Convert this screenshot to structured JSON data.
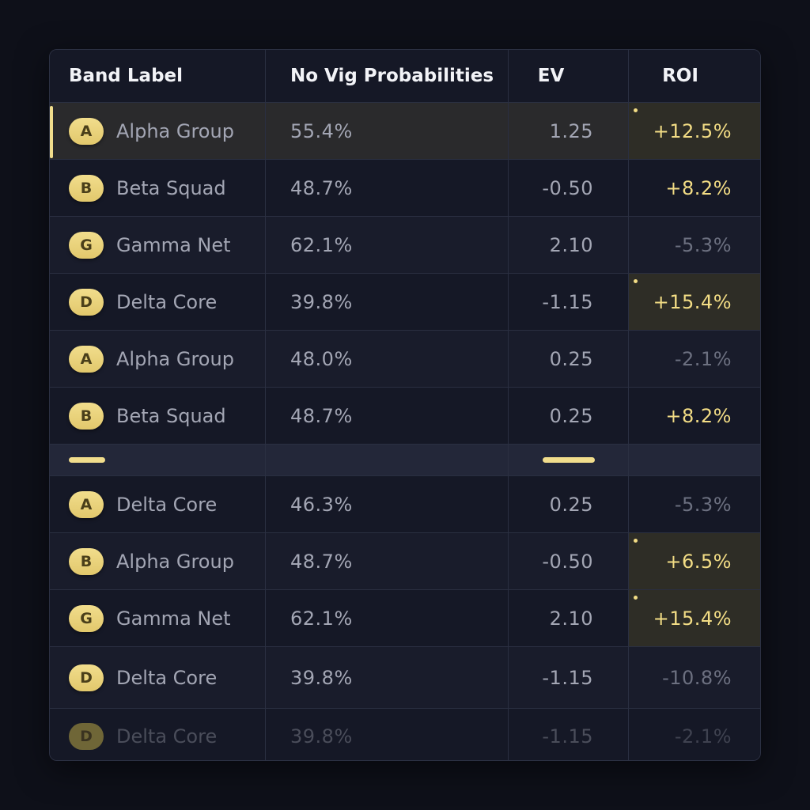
{
  "table": {
    "headers": {
      "band_label": "Band Label",
      "no_vig": "No Vig Probabilities",
      "ev": "EV",
      "roi": "ROI"
    },
    "rows_top": [
      {
        "badge": "A",
        "name": "Alpha Group",
        "prob": "55.4%",
        "ev": "1.25",
        "roi": "+12.5%"
      },
      {
        "badge": "B",
        "name": "Beta Squad",
        "prob": "48.7%",
        "ev": "-0.50",
        "roi": "+8.2%"
      },
      {
        "badge": "G",
        "name": "Gamma Net",
        "prob": "62.1%",
        "ev": "2.10",
        "roi": "-5.3%"
      },
      {
        "badge": "D",
        "name": "Delta Core",
        "prob": "39.8%",
        "ev": "-1.15",
        "roi": "+15.4%"
      },
      {
        "badge": "A",
        "name": "Alpha Group",
        "prob": "48.0%",
        "ev": "0.25",
        "roi": "-2.1%"
      },
      {
        "badge": "B",
        "name": "Beta Squad",
        "prob": "48.7%",
        "ev": "0.25",
        "roi": "+8.2%"
      }
    ],
    "rows_bottom": [
      {
        "badge": "A",
        "name": "Delta Core",
        "prob": "46.3%",
        "ev": "0.25",
        "roi": "-5.3%"
      },
      {
        "badge": "B",
        "name": "Alpha Group",
        "prob": "48.7%",
        "ev": "-0.50",
        "roi": "+6.5%"
      },
      {
        "badge": "G",
        "name": "Gamma Net",
        "prob": "62.1%",
        "ev": "2.10",
        "roi": "+15.4%"
      },
      {
        "badge": "D",
        "name": "Delta Core",
        "prob": "39.8%",
        "ev": "-1.15",
        "roi": "-10.8%"
      },
      {
        "badge": "D",
        "name": "Delta Core",
        "prob": "39.8%",
        "ev": "-1.15",
        "roi": "-2.1%"
      }
    ]
  },
  "colors": {
    "background": "#0e1019",
    "accent": "#f1dd8c",
    "positive_roi": "#f3dd85",
    "negative_roi": "#6c7080"
  }
}
